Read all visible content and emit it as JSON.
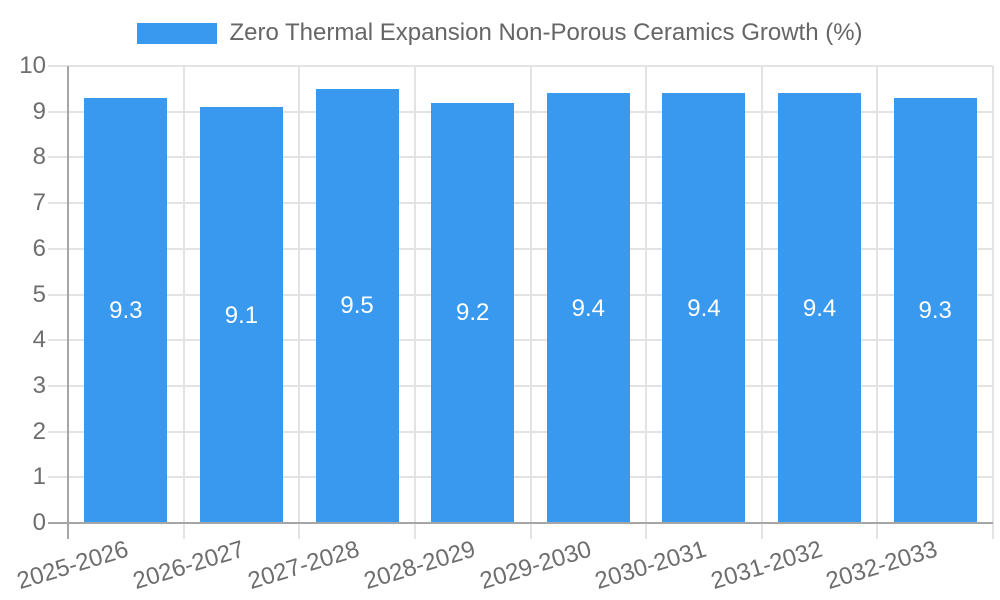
{
  "legend": {
    "label": "Zero Thermal Expansion Non-Porous Ceramics Growth (%)",
    "swatch_color": "#3999ee",
    "text_color": "#666666"
  },
  "chart_data": {
    "type": "bar",
    "title": "Zero Thermal Expansion Non-Porous Ceramics Growth (%)",
    "categories": [
      "2025-2026",
      "2026-2027",
      "2027-2028",
      "2028-2029",
      "2029-2030",
      "2030-2031",
      "2031-2032",
      "2032-2033"
    ],
    "values": [
      9.3,
      9.1,
      9.5,
      9.2,
      9.4,
      9.4,
      9.4,
      9.3
    ],
    "value_labels": [
      "9.3",
      "9.1",
      "9.5",
      "9.2",
      "9.4",
      "9.4",
      "9.4",
      "9.3"
    ],
    "xlabel": "",
    "ylabel": "",
    "ylim": [
      0,
      10
    ],
    "yticks": [
      0,
      1,
      2,
      3,
      4,
      5,
      6,
      7,
      8,
      9,
      10
    ],
    "grid": true,
    "legend_position": "top",
    "x_tick_rotation_deg": -17,
    "colors": {
      "bar": "#3999ee",
      "value_label": "#ffffff",
      "grid_line": "#e3e3e3",
      "axis_line": "#a6a6a6",
      "tick_label": "#6e6e6e"
    }
  }
}
